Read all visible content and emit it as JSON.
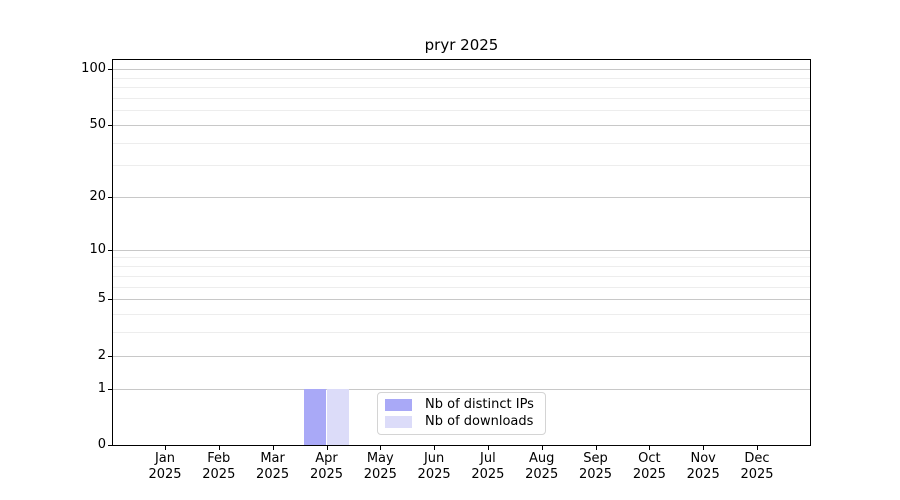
{
  "title": "pryr 2025",
  "chart_data": {
    "type": "bar",
    "title": "pryr 2025",
    "categories": [
      "Jan 2025",
      "Feb 2025",
      "Mar 2025",
      "Apr 2025",
      "May 2025",
      "Jun 2025",
      "Jul 2025",
      "Aug 2025",
      "Sep 2025",
      "Oct 2025",
      "Nov 2025",
      "Dec 2025"
    ],
    "x_tick_months": [
      "Jan",
      "Feb",
      "Mar",
      "Apr",
      "May",
      "Jun",
      "Jul",
      "Aug",
      "Sep",
      "Oct",
      "Nov",
      "Dec"
    ],
    "x_tick_year": "2025",
    "series": [
      {
        "name": "Nb of distinct IPs",
        "color": "#a9a9f7",
        "values": [
          0,
          0,
          0,
          1,
          0,
          0,
          0,
          0,
          0,
          0,
          0,
          0
        ]
      },
      {
        "name": "Nb of downloads",
        "color": "#dcdcf9",
        "values": [
          0,
          0,
          0,
          1,
          0,
          0,
          0,
          0,
          0,
          0,
          0,
          0
        ]
      }
    ],
    "yscale": "log1p",
    "y_major_ticks": [
      0,
      1,
      2,
      5,
      10,
      20,
      50,
      100
    ],
    "y_minor_ticks": [
      3,
      4,
      6,
      7,
      8,
      9,
      30,
      40,
      60,
      70,
      80,
      90
    ],
    "ylim": [
      0,
      112
    ],
    "grid": true,
    "legend_position": "lower center",
    "colors": {
      "major_grid": "#c8c8c8",
      "minor_grid": "#ededed",
      "spine": "#000000",
      "background": "#ffffff"
    }
  }
}
